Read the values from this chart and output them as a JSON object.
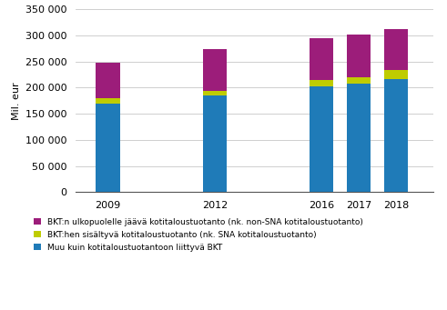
{
  "years": [
    "2009",
    "2012",
    "2016",
    "2017",
    "2018"
  ],
  "blue": [
    170000,
    185000,
    202000,
    208000,
    216000
  ],
  "green": [
    10000,
    8000,
    12000,
    12000,
    17000
  ],
  "purple": [
    68000,
    80000,
    80000,
    82000,
    79000
  ],
  "bar_color_blue": "#1F7BB8",
  "bar_color_green": "#BFCC00",
  "bar_color_purple": "#9C1D7A",
  "ylabel": "Mil. eur",
  "ylim": [
    0,
    350000
  ],
  "yticks": [
    0,
    50000,
    100000,
    150000,
    200000,
    250000,
    300000,
    350000
  ],
  "legend_labels": [
    "BKT:n ulkopuolelle jäävä kotitaloustuotanto (nk. non-SNA kotitaloustuotanto)",
    "BKT:hen sisältyvä kotitaloustuotanto (nk. SNA kotitaloustuotanto)",
    "Muu kuin kotitaloustuotantoon liittyvä BKT"
  ],
  "positions": [
    0.5,
    2.5,
    4.5,
    5.2,
    5.9
  ],
  "bar_width": 0.45,
  "xlim": [
    -0.1,
    6.6
  ],
  "figsize": [
    4.91,
    3.41
  ],
  "dpi": 100,
  "background_color": "#FFFFFF",
  "grid_color": "#C8C8C8",
  "ylabel_fontsize": 8,
  "legend_fontsize": 6.5,
  "tick_fontsize": 8
}
